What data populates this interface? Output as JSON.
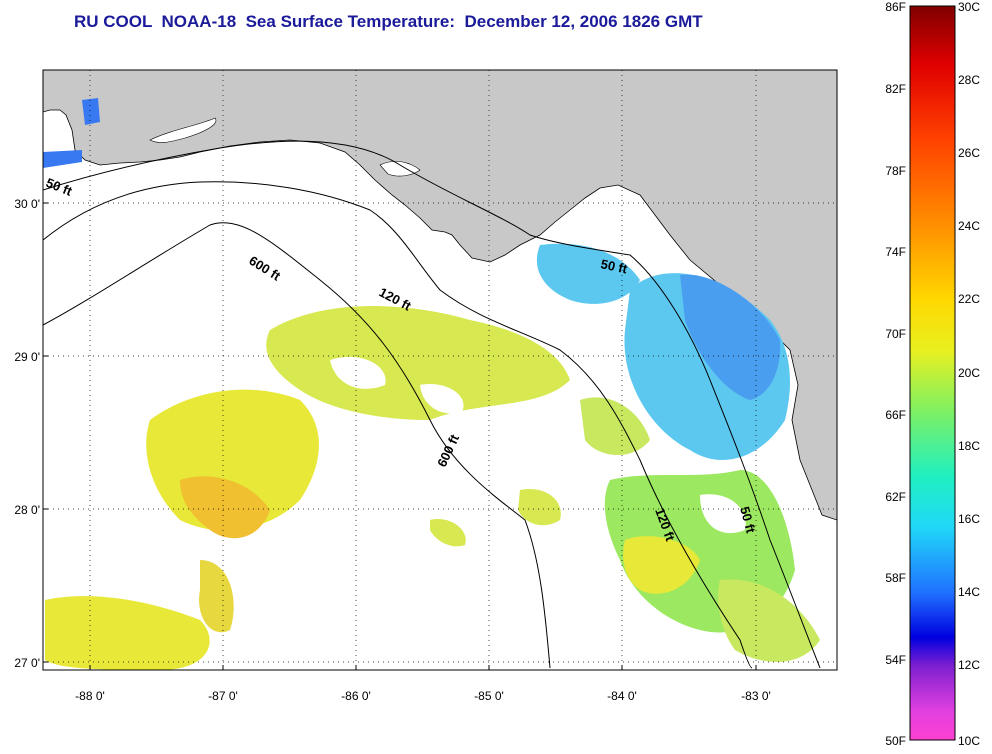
{
  "title": "RU COOL  NOAA-18  Sea Surface Temperature:  December 12, 2006 1826 GMT",
  "map": {
    "longitude_ticks": [
      "-88 0'",
      "-87 0'",
      "-86 0'",
      "-85 0'",
      "-84 0'",
      "-83 0'"
    ],
    "latitude_ticks": [
      "30 0'",
      "29 0'",
      "28 0'",
      "27 0'"
    ],
    "contours": [
      {
        "label": "50 ft"
      },
      {
        "label": "600 ft"
      },
      {
        "label": "120 ft"
      },
      {
        "label": "50 ft"
      },
      {
        "label": "600 ft"
      },
      {
        "label": "120 ft"
      },
      {
        "label": "50 ft"
      }
    ],
    "colors": {
      "land": "#c8c8c8",
      "cloud": "#ffffff",
      "sst_warm": "#e8e838",
      "sst_mid": "#9ce860",
      "sst_cool": "#5cc8f0",
      "sst_cold": "#3878f0"
    }
  },
  "colorbar": {
    "fahrenheit_labels": [
      "86F",
      "82F",
      "78F",
      "74F",
      "70F",
      "66F",
      "62F",
      "58F",
      "54F",
      "50F"
    ],
    "celsius_labels": [
      "30C",
      "28C",
      "26C",
      "24C",
      "22C",
      "20C",
      "18C",
      "16C",
      "14C",
      "12C",
      "10C"
    ]
  }
}
